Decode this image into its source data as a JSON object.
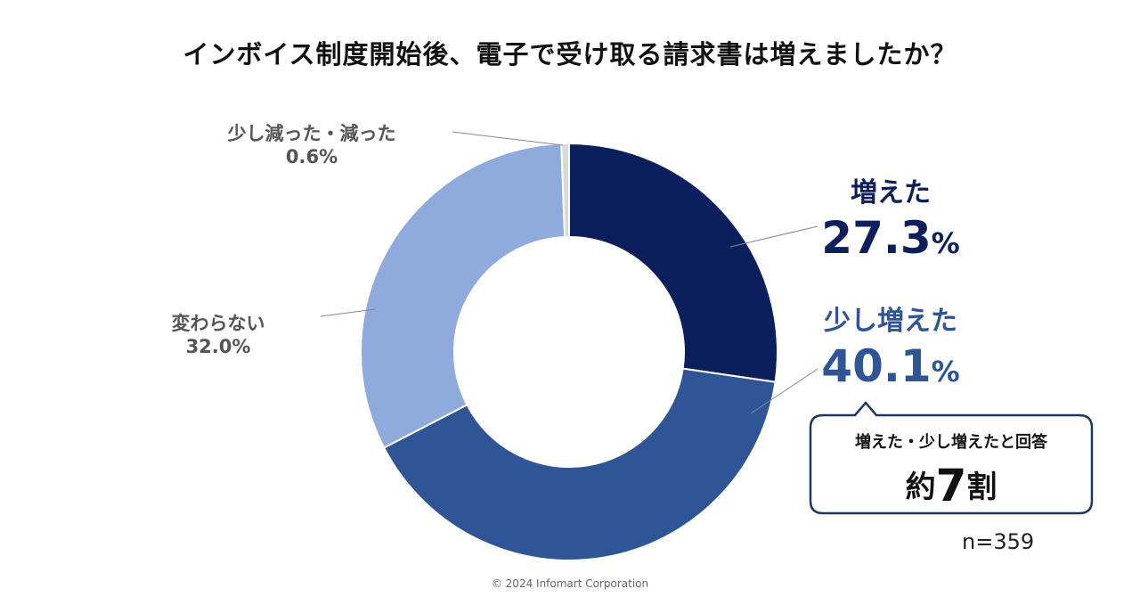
{
  "title": "インボイス制度開始後、電子で受け取る請求書は増えましたか？",
  "chart_data": {
    "type": "pie",
    "variant": "donut",
    "title": "インボイス制度開始後、電子で受け取る請求書は増えましたか？",
    "slices": [
      {
        "label": "増えた",
        "value": 27.3,
        "display": "27.3",
        "unit": "%",
        "color": "#0b1f5c"
      },
      {
        "label": "少し増えた",
        "value": 40.1,
        "display": "40.1",
        "unit": "%",
        "color": "#2f5597"
      },
      {
        "label": "変わらない",
        "value": 32.0,
        "display": "32.0%",
        "color": "#8faadc"
      },
      {
        "label": "少し減った・減った",
        "value": 0.6,
        "display": "0.6%",
        "color": "#d9d9d9"
      }
    ],
    "sample_size": "n=359"
  },
  "callout": {
    "line1": "増えた・少し増えたと回答",
    "prefix": "約",
    "number": "7",
    "suffix": "割"
  },
  "copyright": "© 2024  Infomart Corporation"
}
